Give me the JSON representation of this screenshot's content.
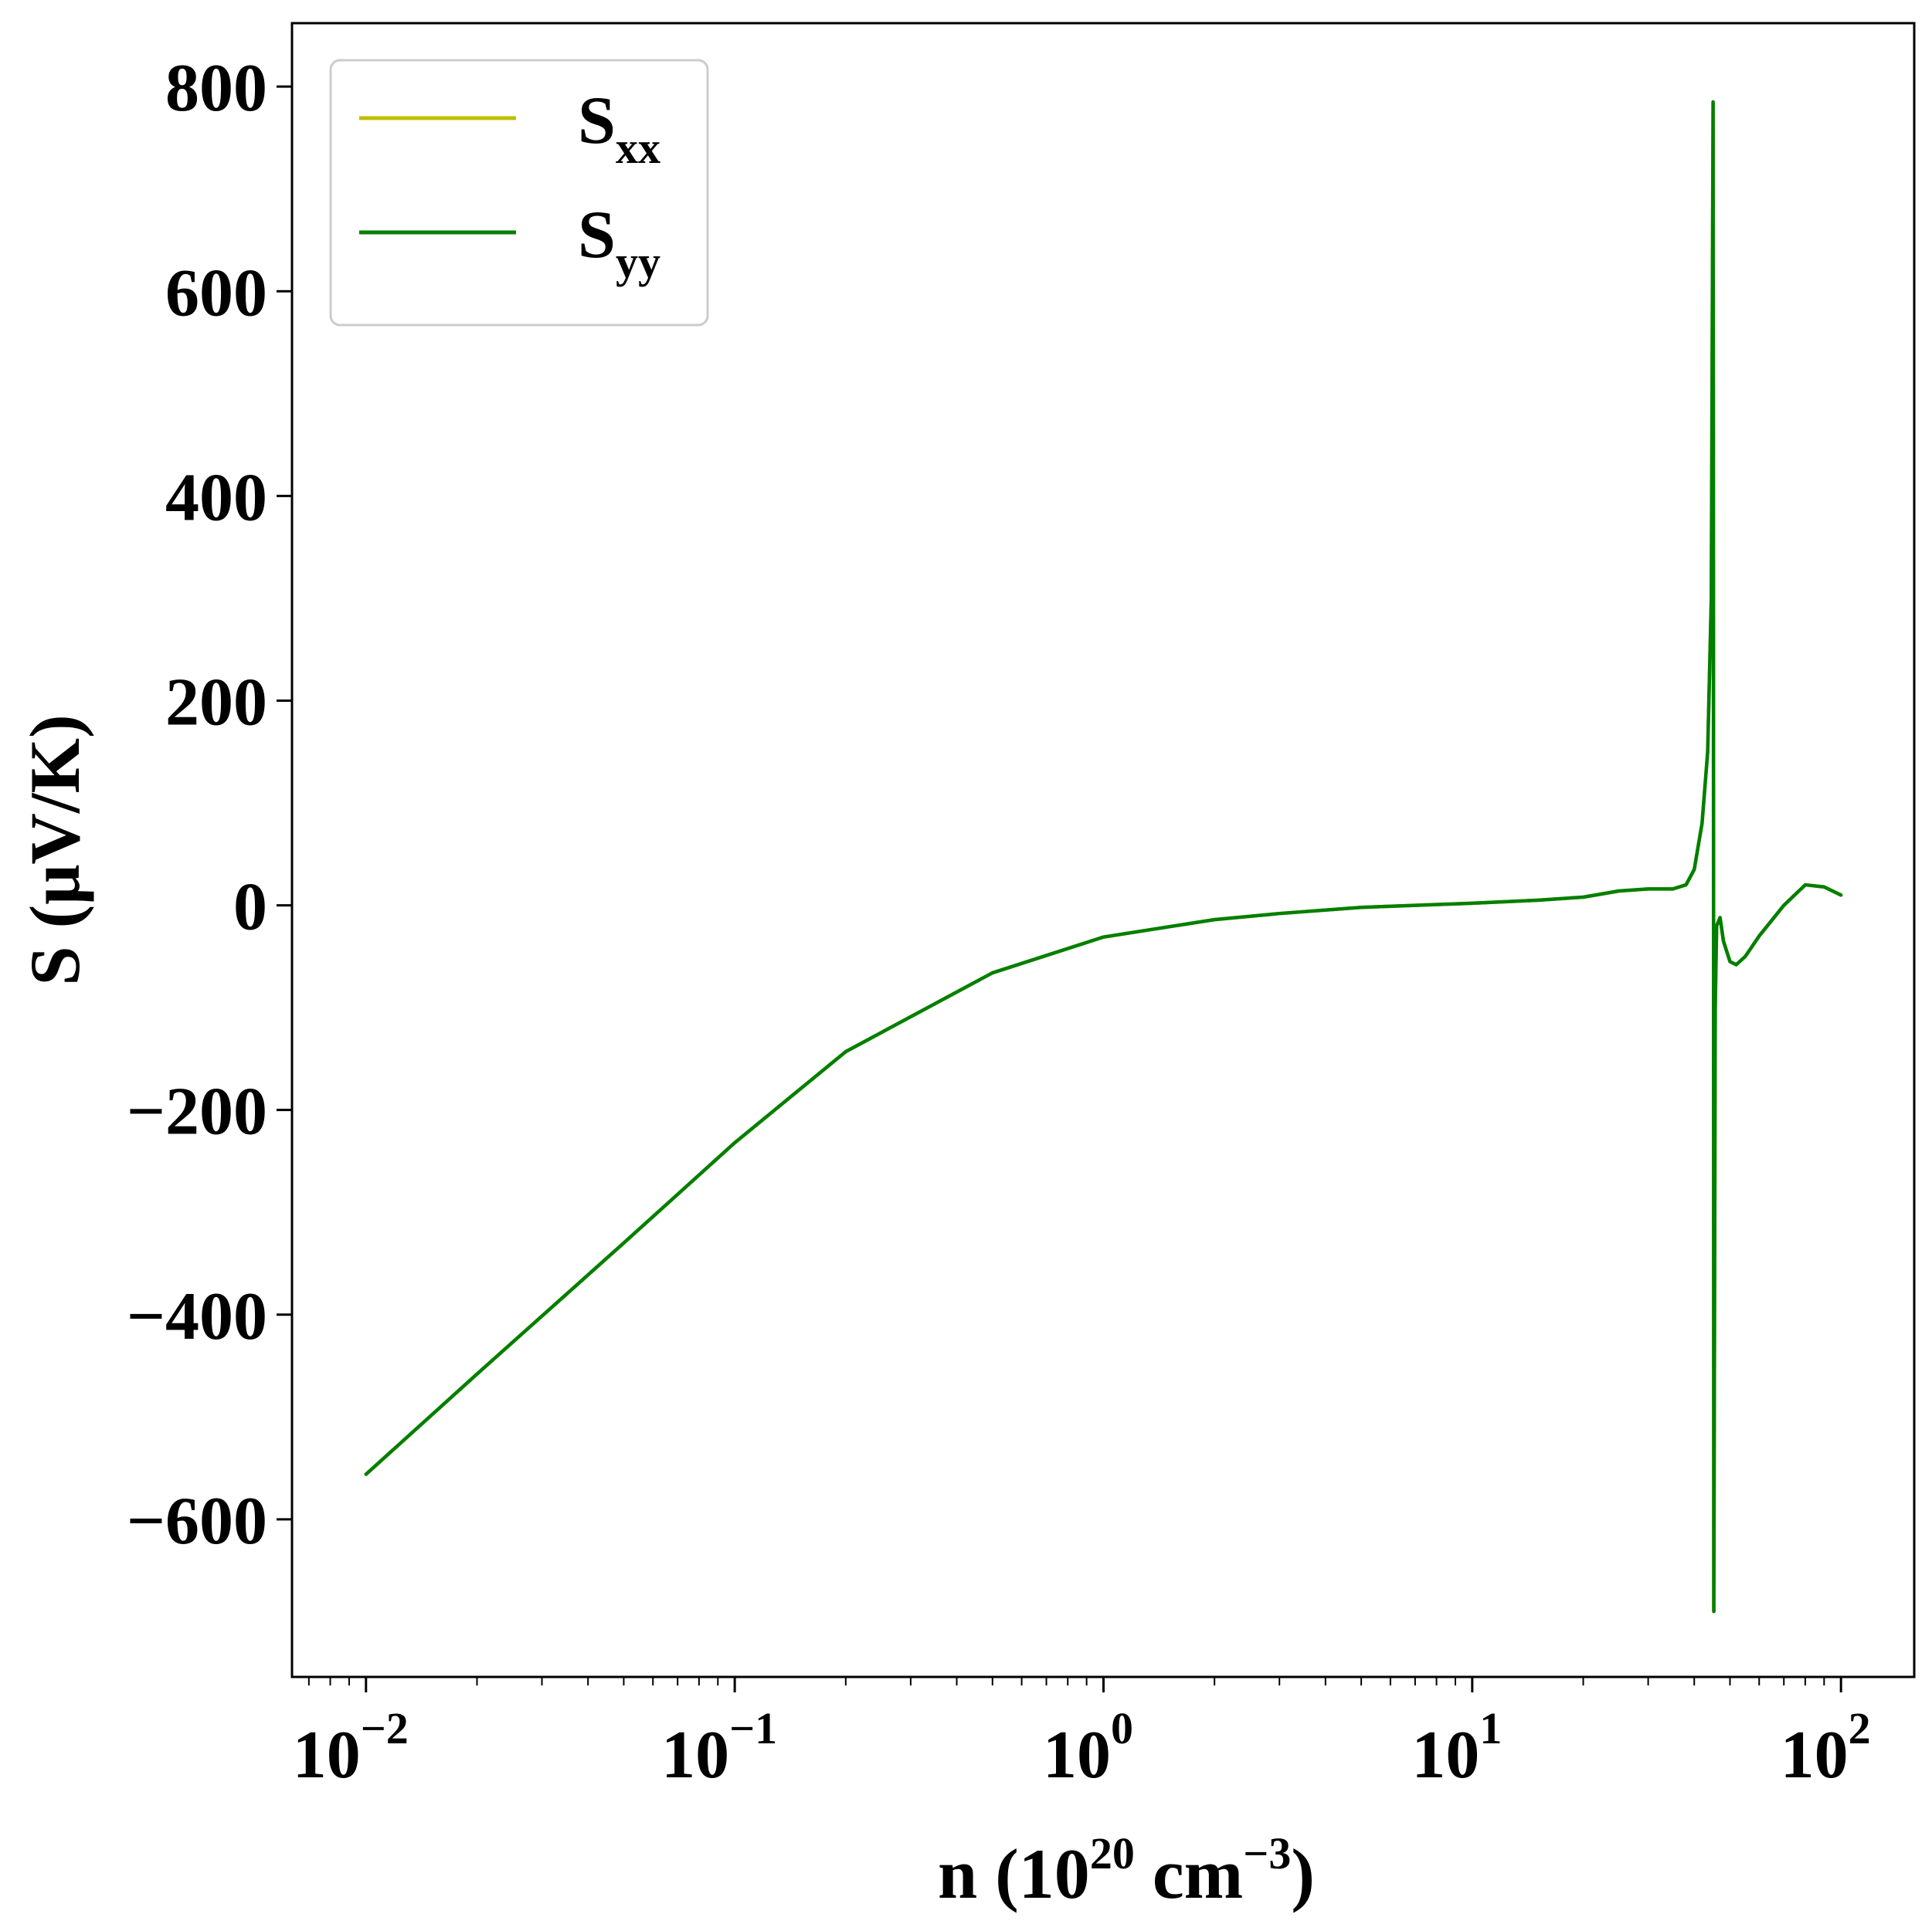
{
  "chart_data": {
    "type": "line",
    "xscale": "log",
    "xlim": [
      0.0063,
      158
    ],
    "ylim": [
      -754,
      862
    ],
    "xticks": [
      {
        "value": 0.01,
        "base": "10",
        "exp": "−2"
      },
      {
        "value": 0.1,
        "base": "10",
        "exp": "−1"
      },
      {
        "value": 1,
        "base": "10",
        "exp": "0"
      },
      {
        "value": 10,
        "base": "10",
        "exp": "1"
      },
      {
        "value": 100,
        "base": "10",
        "exp": "2"
      }
    ],
    "yticks": [
      {
        "value": 800,
        "label": "800"
      },
      {
        "value": 600,
        "label": "600"
      },
      {
        "value": 400,
        "label": "400"
      },
      {
        "value": 200,
        "label": "200"
      },
      {
        "value": 0,
        "label": "0"
      },
      {
        "value": -200,
        "label": "−200"
      },
      {
        "value": -400,
        "label": "−400"
      },
      {
        "value": -600,
        "label": "−600"
      }
    ],
    "xlabel": {
      "prefix": "n (10",
      "sup1": "20",
      "mid": " cm",
      "sup2": "−3",
      "suffix": ")"
    },
    "ylabel": "S (μV/K)",
    "legend": {
      "placement": "upper left"
    },
    "series": [
      {
        "name": "S",
        "subscript": "xx",
        "color": "#bfbf00",
        "x": [
          0.01,
          0.02,
          0.05,
          0.1,
          0.2,
          0.5,
          1,
          2,
          3,
          5,
          7,
          10,
          15,
          20,
          25,
          30,
          35,
          38,
          40,
          42,
          43.5,
          44.5,
          45,
          45.1,
          45.2,
          45.6,
          46,
          47,
          48,
          50,
          52,
          55,
          60,
          70,
          80,
          90,
          100
        ],
        "y": [
          -556,
          -458,
          -330,
          -232,
          -143,
          -66,
          -31,
          -14,
          -8,
          -2,
          0,
          2,
          5,
          8,
          14,
          16,
          16,
          20,
          35,
          80,
          150,
          300,
          785,
          300,
          -690,
          -100,
          -20,
          -12,
          -35,
          -55,
          -58,
          -50,
          -30,
          0,
          20,
          18,
          10
        ]
      },
      {
        "name": "S",
        "subscript": "yy",
        "color": "#007f00",
        "x": [
          0.01,
          0.02,
          0.05,
          0.1,
          0.2,
          0.5,
          1,
          2,
          3,
          5,
          7,
          10,
          15,
          20,
          25,
          30,
          35,
          38,
          40,
          42,
          43.5,
          44.5,
          45,
          45.1,
          45.2,
          45.6,
          46,
          47,
          48,
          50,
          52,
          55,
          60,
          70,
          80,
          90,
          100
        ],
        "y": [
          -556,
          -458,
          -330,
          -232,
          -143,
          -66,
          -31,
          -14,
          -8,
          -2,
          0,
          2,
          5,
          8,
          14,
          16,
          16,
          20,
          35,
          80,
          150,
          300,
          785,
          300,
          -690,
          -100,
          -20,
          -12,
          -35,
          -55,
          -58,
          -50,
          -30,
          0,
          20,
          18,
          10
        ]
      }
    ]
  }
}
